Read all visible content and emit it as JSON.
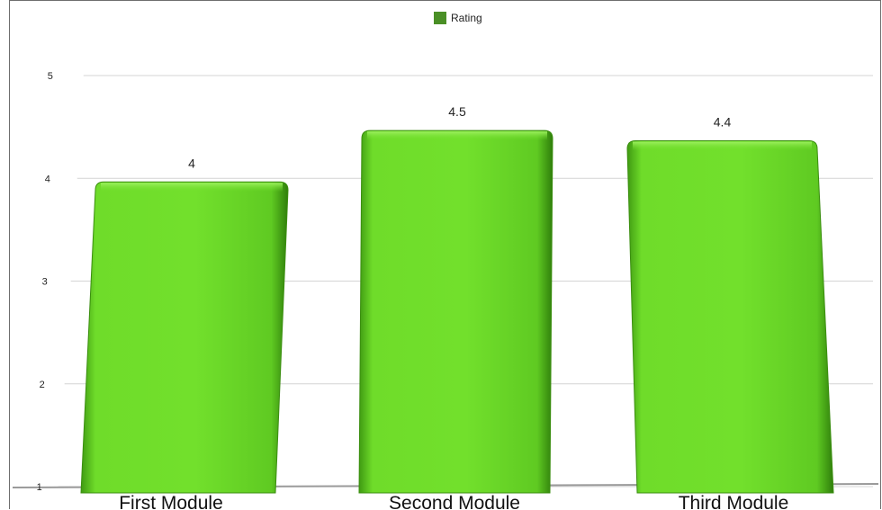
{
  "chart_data": {
    "type": "bar",
    "categories": [
      "First Module",
      "Second Module",
      "Third Module"
    ],
    "series": [
      {
        "name": "Rating",
        "values": [
          4,
          4.5,
          4.4
        ]
      }
    ],
    "data_labels": [
      "4",
      "4.5",
      "4.4"
    ],
    "yticks": [
      "1",
      "2",
      "3",
      "4",
      "5"
    ],
    "ylim": [
      1,
      5
    ],
    "grid": true,
    "legend_position": "top-center",
    "colors": {
      "bar": "#6fdc2a",
      "bar_dark": "#3f9a12",
      "legend": "#4a8f26",
      "grid": "#d4d4d4"
    }
  },
  "legend": {
    "label": "Rating"
  }
}
